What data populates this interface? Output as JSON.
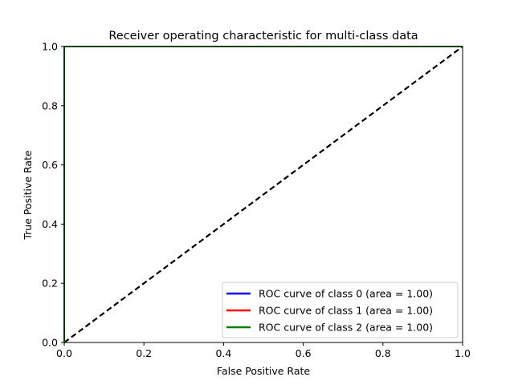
{
  "chart_data": {
    "type": "line",
    "title": "Receiver operating characteristic for multi-class data",
    "xlabel": "False Positive Rate",
    "ylabel": "True Positive Rate",
    "xlim": [
      0.0,
      1.0
    ],
    "ylim": [
      0.0,
      1.0
    ],
    "xticks": [
      0.0,
      0.2,
      0.4,
      0.6,
      0.8,
      1.0
    ],
    "yticks": [
      0.0,
      0.2,
      0.4,
      0.6,
      0.8,
      1.0
    ],
    "xtick_labels": [
      "0.0",
      "0.2",
      "0.4",
      "0.6",
      "0.8",
      "1.0"
    ],
    "ytick_labels": [
      "0.0",
      "0.2",
      "0.4",
      "0.6",
      "0.8",
      "1.0"
    ],
    "grid": false,
    "legend_placement": "lower-right",
    "series": [
      {
        "name": "ROC curve of class 0 (area = 1.00)",
        "color": "#0000ff",
        "x": [
          0.0,
          0.0,
          1.0
        ],
        "y": [
          0.0,
          1.0,
          1.0
        ]
      },
      {
        "name": "ROC curve of class 1 (area = 1.00)",
        "color": "#ff0000",
        "x": [
          0.0,
          0.0,
          1.0
        ],
        "y": [
          0.0,
          1.0,
          1.0
        ]
      },
      {
        "name": "ROC curve of class 2 (area = 1.00)",
        "color": "#008000",
        "x": [
          0.0,
          0.0,
          1.0
        ],
        "y": [
          0.0,
          1.0,
          1.0
        ]
      }
    ],
    "reference_line": {
      "x": [
        0.0,
        1.0
      ],
      "y": [
        0.0,
        1.0
      ],
      "color": "#000000",
      "style": "dashed"
    }
  }
}
